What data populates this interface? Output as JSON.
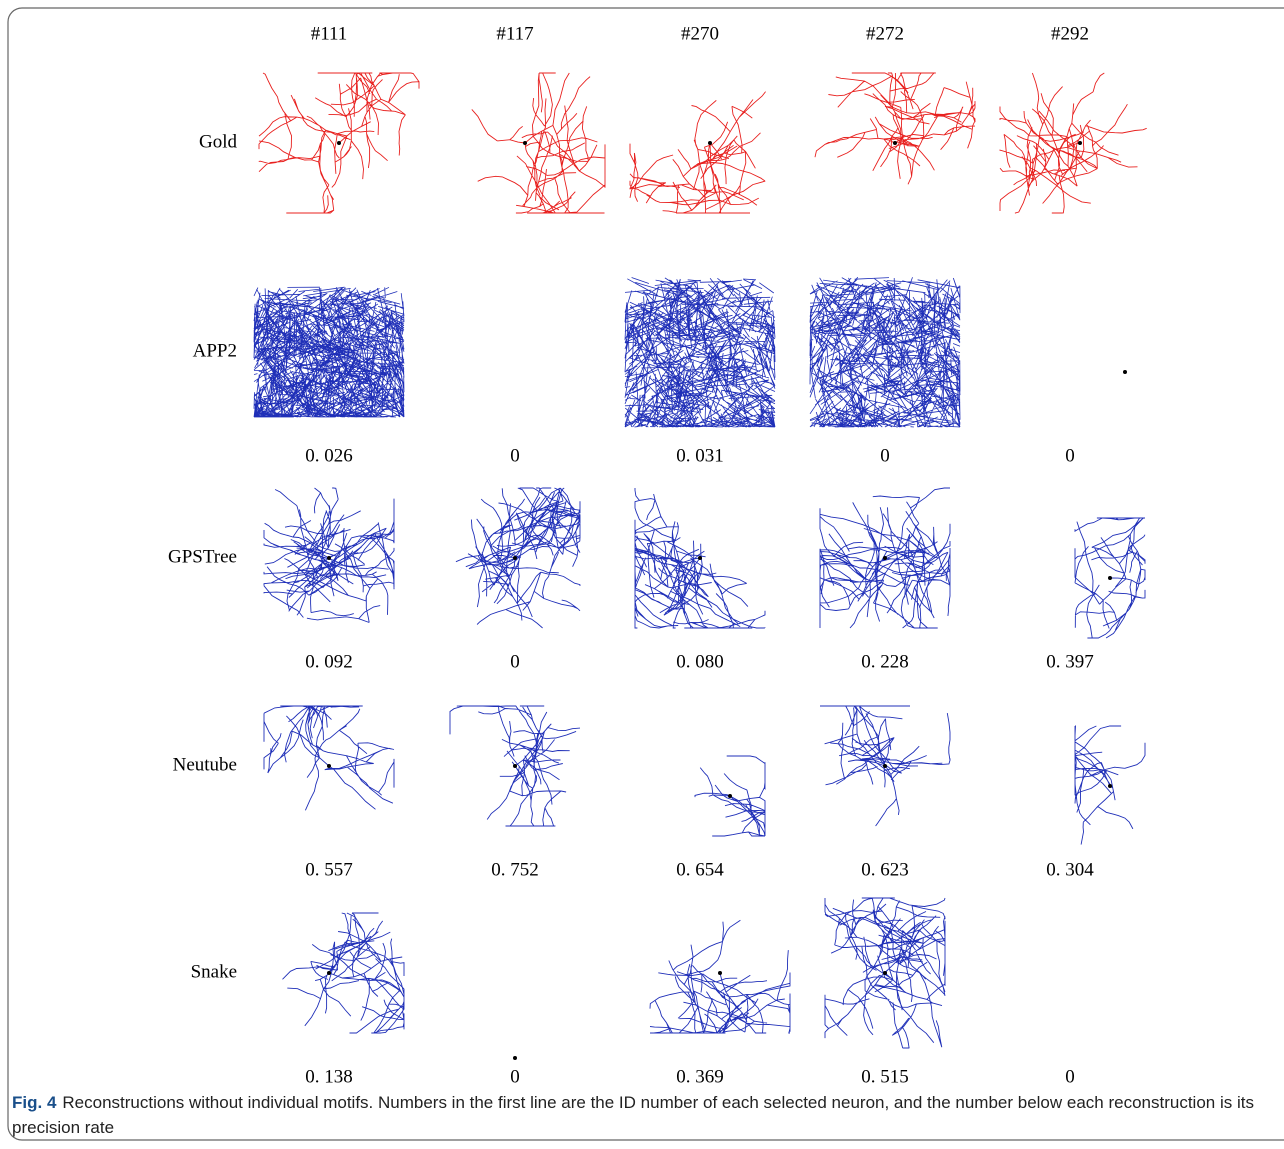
{
  "header": {
    "columns": [
      "#111",
      "#117",
      "#270",
      "#272",
      "#292"
    ]
  },
  "rows": [
    {
      "label": "Gold"
    },
    {
      "label": "APP2",
      "scores": [
        "0. 026",
        "0",
        "0. 031",
        "0",
        "0"
      ]
    },
    {
      "label": "GPSTree",
      "scores": [
        "0. 092",
        "0",
        "0. 080",
        "0. 228",
        "0. 397"
      ]
    },
    {
      "label": "Neutube",
      "scores": [
        "0. 557",
        "0. 752",
        "0. 654",
        "0. 623",
        "0. 304"
      ]
    },
    {
      "label": "Snake",
      "scores": [
        "0. 138",
        "0",
        "0. 369",
        "0. 515",
        "0"
      ]
    }
  ],
  "caption": {
    "label": "Fig. 4",
    "text": "Reconstructions without individual motifs. Numbers in the first line are the ID number of each selected neuron, and the number below each reconstruction is its precision rate"
  }
}
